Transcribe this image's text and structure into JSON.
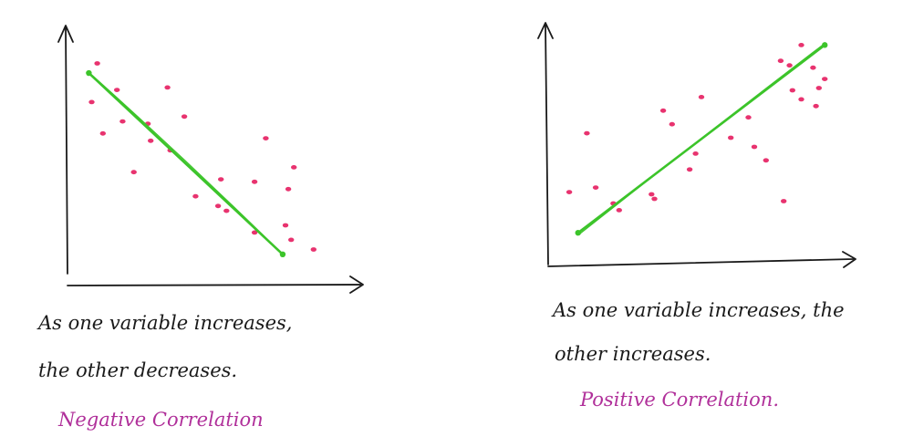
{
  "colors": {
    "ink": "#1a1a1a",
    "points": "#e8336f",
    "trend": "#3cc42a",
    "label": "#b0309a"
  },
  "chart_data": [
    {
      "type": "scatter",
      "title": "",
      "xlabel": "",
      "ylabel": "",
      "grid": false,
      "xlim": [
        0,
        10
      ],
      "ylim": [
        0,
        10
      ],
      "series": [
        {
          "x": [
            0.8,
            0.6,
            1.5,
            1.0,
            1.7,
            2.6,
            3.3,
            2.1,
            3.9,
            2.7,
            3.4,
            5.2,
            4.3,
            5.1,
            6.8,
            6.4,
            7.8,
            7.6,
            5.4,
            6.4,
            7.5,
            7.7,
            8.5
          ],
          "y": [
            8.7,
            7.1,
            7.6,
            5.8,
            6.3,
            6.2,
            7.7,
            4.2,
            6.5,
            5.5,
            5.1,
            3.9,
            3.2,
            2.8,
            5.6,
            3.8,
            4.4,
            3.5,
            2.6,
            1.7,
            2.0,
            1.4,
            1.0
          ]
        }
      ],
      "trendline": {
        "x": [
          0.5,
          7.4
        ],
        "y": [
          8.3,
          0.8
        ]
      },
      "caption": [
        "As one variable increases,",
        "the other decreases."
      ],
      "correlation_label": "Negative Correlation"
    },
    {
      "type": "scatter",
      "title": "",
      "xlabel": "",
      "ylabel": "",
      "grid": false,
      "xlim": [
        0,
        10
      ],
      "ylim": [
        0,
        10
      ],
      "series": [
        {
          "x": [
            1.1,
            0.5,
            1.4,
            2.2,
            2.0,
            3.4,
            3.3,
            3.7,
            5.0,
            4.0,
            4.8,
            4.6,
            6.6,
            6.0,
            7.2,
            6.8,
            7.8,
            8.0,
            8.4,
            7.7,
            8.8,
            9.2,
            8.9,
            8.4,
            8.1,
            9.0
          ],
          "y": [
            5.4,
            2.8,
            3.0,
            2.0,
            2.3,
            2.5,
            2.7,
            6.4,
            7.0,
            5.8,
            4.5,
            3.8,
            6.1,
            5.2,
            4.2,
            4.8,
            2.4,
            8.4,
            9.3,
            8.6,
            8.3,
            7.8,
            6.6,
            6.9,
            7.3,
            7.4
          ]
        }
      ],
      "trendline": {
        "x": [
          0.8,
          9.2
        ],
        "y": [
          1.0,
          9.3
        ]
      },
      "caption": [
        "As one variable increases, the",
        "other increases."
      ],
      "correlation_label": "Positive Correlation."
    }
  ]
}
